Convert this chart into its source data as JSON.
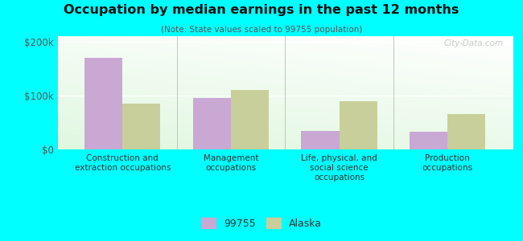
{
  "title": "Occupation by median earnings in the past 12 months",
  "subtitle": "(Note: State values scaled to 99755 population)",
  "categories": [
    "Construction and\nextraction occupations",
    "Management\noccupations",
    "Life, physical, and\nsocial science\noccupations",
    "Production\noccupations"
  ],
  "values_99755": [
    170000,
    95000,
    35000,
    33000
  ],
  "values_alaska": [
    85000,
    110000,
    90000,
    65000
  ],
  "color_99755": "#c9a8d4",
  "color_alaska": "#c8cf9a",
  "ylim": [
    0,
    210000
  ],
  "yticks": [
    0,
    100000,
    200000
  ],
  "ytick_labels": [
    "$0",
    "$100k",
    "$200k"
  ],
  "background_color": "#00ffff",
  "legend_label_99755": "99755",
  "legend_label_alaska": "Alaska",
  "bar_width": 0.35,
  "watermark": "City-Data.com"
}
